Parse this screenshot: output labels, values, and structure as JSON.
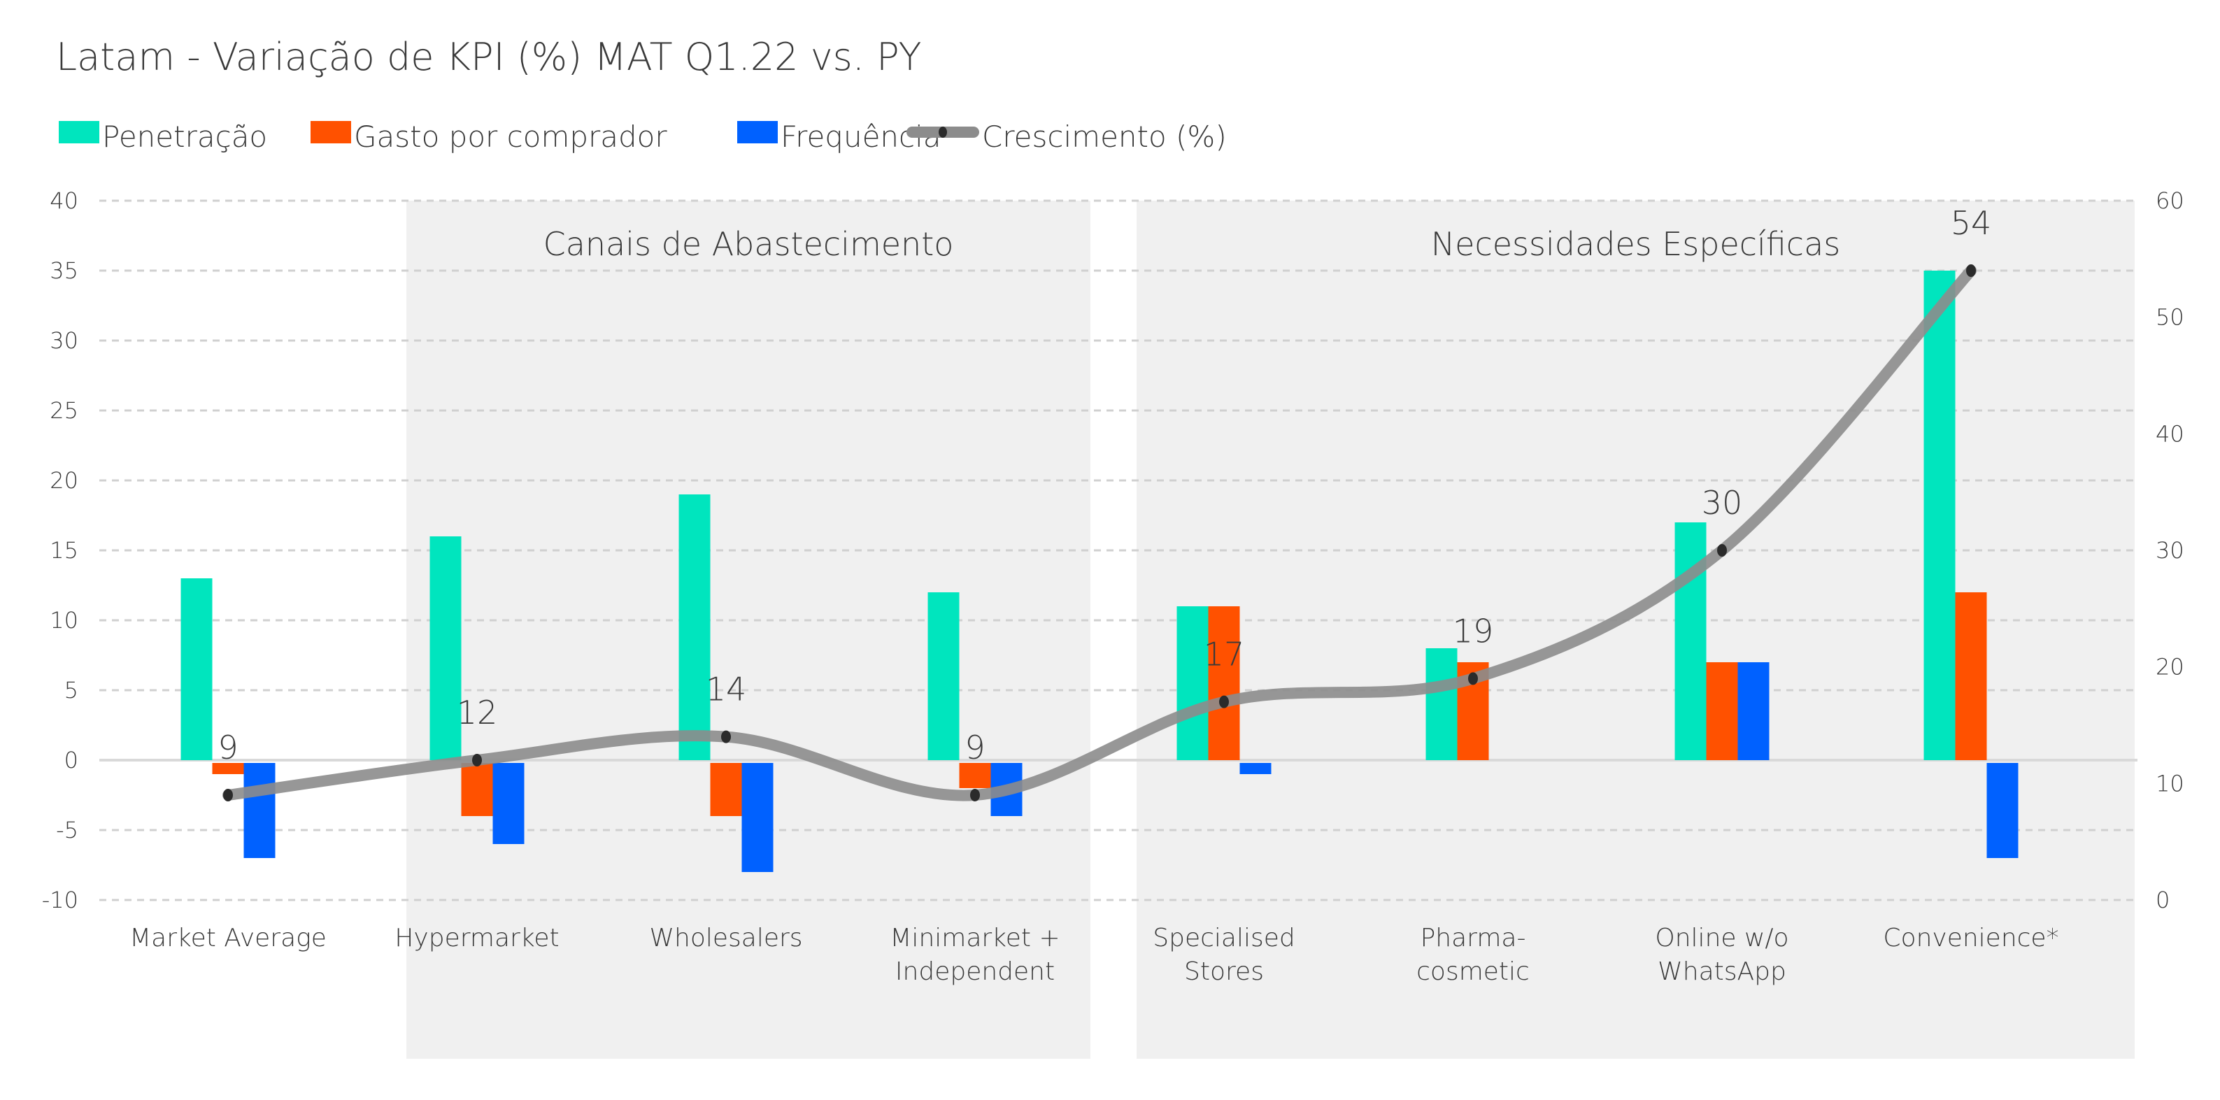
{
  "chart_data": {
    "type": "bar",
    "title": "Latam -  Variação de KPI (%) MAT Q1.22 vs. PY",
    "categories": [
      [
        "Market Average"
      ],
      [
        "Hypermarket"
      ],
      [
        "Wholesalers"
      ],
      [
        "Minimarket +",
        "Independent"
      ],
      [
        "Specialised",
        "Stores"
      ],
      [
        "Pharma-",
        "cosmetic"
      ],
      [
        "Online w/o",
        "WhatsApp"
      ],
      [
        "Convenience*"
      ]
    ],
    "groups": [
      {
        "label": "Canais de Abastecimento",
        "categories": [
          "Hypermarket",
          "Wholesalers",
          "Minimarket + Independent"
        ]
      },
      {
        "label": "Necessidades Específicas",
        "categories": [
          "Specialised Stores",
          "Pharma-cosmetic",
          "Online w/o WhatsApp",
          "Convenience*"
        ]
      }
    ],
    "series": [
      {
        "name": "Penetração",
        "type": "bar",
        "axis": "left",
        "color": "#00E5BE",
        "values": [
          13,
          16,
          19,
          12,
          11,
          8,
          17,
          35
        ]
      },
      {
        "name": "Gasto por comprador",
        "type": "bar",
        "axis": "left",
        "color": "#FF5100",
        "values": [
          -1,
          -4,
          -4,
          -2,
          11,
          7,
          7,
          12
        ]
      },
      {
        "name": "Frequência",
        "type": "bar",
        "axis": "left",
        "color": "#0061FF",
        "values": [
          -7,
          -6,
          -8,
          -4,
          -1,
          0,
          7,
          -7
        ]
      },
      {
        "name": "Crescimento (%)",
        "type": "line",
        "smooth": true,
        "axis": "right",
        "color": "#8C8C8C",
        "values": [
          9,
          12,
          14,
          9,
          17,
          19,
          30,
          54
        ]
      }
    ],
    "y_left": {
      "lim": [
        -10,
        40
      ],
      "ticks": [
        "40",
        "35",
        "30",
        "25",
        "20",
        "15",
        "10",
        "5",
        "0",
        "-5",
        "-10"
      ]
    },
    "y_right": {
      "lim": [
        0,
        60
      ],
      "ticks": [
        "60",
        "50",
        "40",
        "30",
        "20",
        "10",
        "0"
      ]
    },
    "grid": true,
    "legend": "top-left"
  }
}
